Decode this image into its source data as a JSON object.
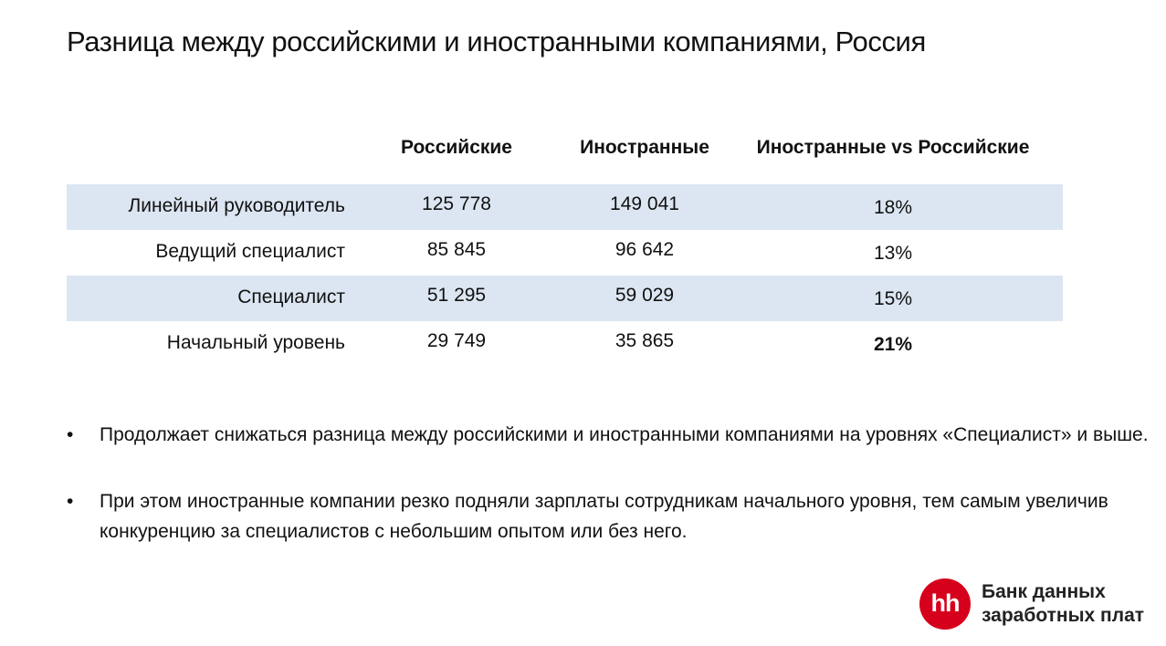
{
  "title": "Разница между российскими и иностранными компаниями, Россия",
  "table": {
    "headers": [
      "Российские",
      "Иностранные",
      "Иностранные vs Российские"
    ],
    "rows": [
      {
        "label": "Линейный руководитель",
        "russian": "125 778",
        "foreign": "149 041",
        "diff": "18%"
      },
      {
        "label": "Ведущий специалист",
        "russian": "85 845",
        "foreign": "96 642",
        "diff": "13%"
      },
      {
        "label": "Специалист",
        "russian": "51 295",
        "foreign": "59 029",
        "diff": "15%"
      },
      {
        "label": "Начальный уровень",
        "russian": "29 749",
        "foreign": "35 865",
        "diff": "21%"
      }
    ],
    "shaded_color": "#dce6f2"
  },
  "bullets": [
    "Продолжает снижаться разница между российскими и иностранными компаниями на уровнях «Специалист» и выше.",
    "При этом иностранные компании резко подняли зарплаты сотрудникам начального уровня, тем самым увеличив конкуренцию за специалистов с небольшим опытом или без него."
  ],
  "bullet_symbol": "•",
  "logo": {
    "mark": "hh",
    "line1": "Банк данных",
    "line2": "заработных плат",
    "color": "#d6001c"
  }
}
